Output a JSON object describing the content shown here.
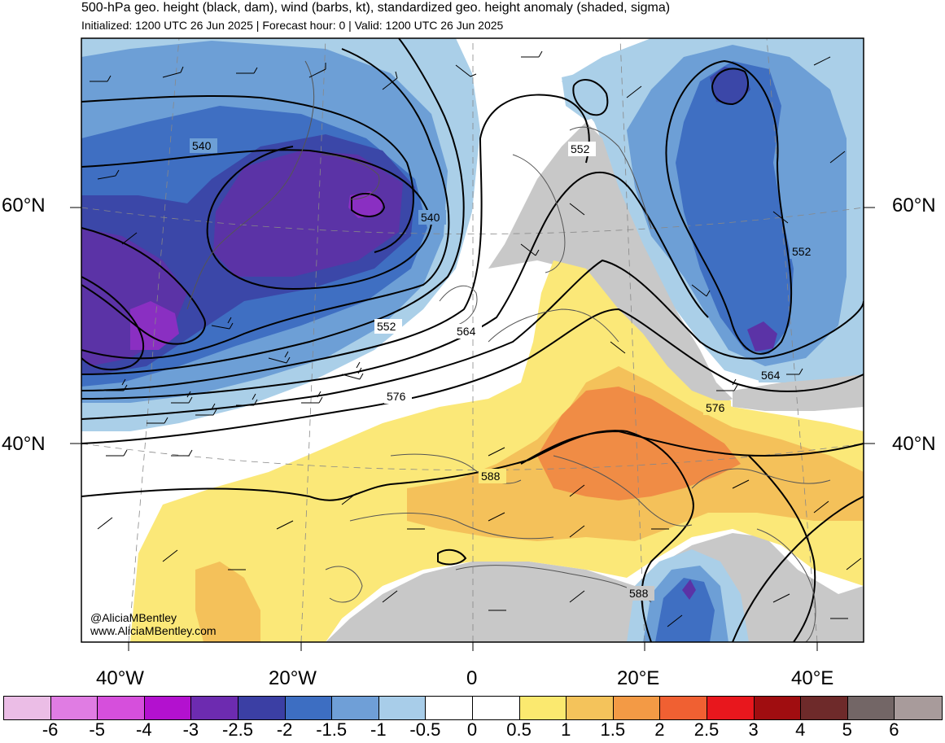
{
  "header": {
    "title": "500-hPa geo. height (black, dam), wind (barbs, kt), standardized geo. height anomaly (shaded, sigma)",
    "subtitle": "Initialized: 1200 UTC 26 Jun 2025 | Forecast hour: 0 | Valid: 1200 UTC 26 Jun 2025"
  },
  "map": {
    "lat_labels": [
      "60°N",
      "40°N"
    ],
    "lon_labels": [
      "40°W",
      "20°W",
      "0",
      "20°E",
      "40°E"
    ],
    "contour_labels": [
      "540",
      "540",
      "552",
      "552",
      "552",
      "564",
      "564",
      "576",
      "576",
      "588",
      "588"
    ],
    "credit_handle": "@AliciaMBentley",
    "credit_site": "www.AliciaMBentley.com",
    "colors": {
      "land_gray": "#c8c8c8",
      "anomaly_neg_0_5": "#aacfe8",
      "anomaly_neg_1": "#6d9fd6",
      "anomaly_neg_1_5": "#3f6fc2",
      "anomaly_neg_2": "#3b47a8",
      "anomaly_neg_2_5": "#5b33a6",
      "anomaly_neg_3": "#8a2fc2",
      "anomaly_pos_0_5": "#fbe878",
      "anomaly_pos_1": "#f4c15a",
      "anomaly_pos_1_5": "#f08c45"
    }
  },
  "colorbar": {
    "cells": [
      "#ebbde6",
      "#e07ce3",
      "#d64fdc",
      "#b311cf",
      "#6d2bb0",
      "#3b3fa4",
      "#3d6ec2",
      "#6f9fd7",
      "#a8cde9",
      "#ffffff",
      "#ffffff",
      "#fbe96f",
      "#f4c35b",
      "#f39a45",
      "#f06032",
      "#e8171d",
      "#a00d10",
      "#6e2a2a",
      "#736666",
      "#a89b9b"
    ],
    "ticks": [
      "-6",
      "-5",
      "-4",
      "-3",
      "-2.5",
      "-2",
      "-1.5",
      "-1",
      "-0.5",
      "0",
      "0.5",
      "1",
      "1.5",
      "2",
      "2.5",
      "3",
      "4",
      "5",
      "6"
    ]
  }
}
